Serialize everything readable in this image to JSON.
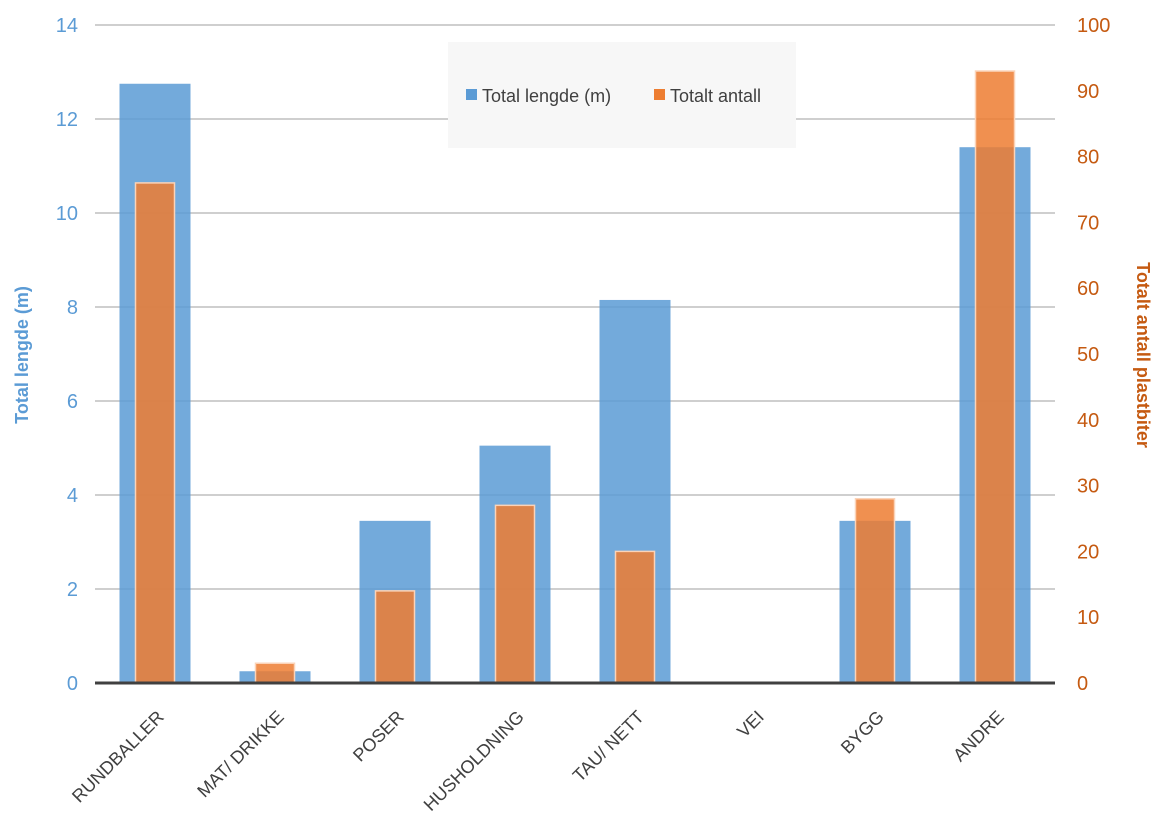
{
  "chart_data": {
    "type": "bar",
    "categories": [
      "RUNDBALLER",
      "MAT/ DRIKKE",
      "POSER",
      "HUSHOLDNING",
      "TAU/ NETT",
      "VEI",
      "BYGG",
      "ANDRE"
    ],
    "series": [
      {
        "name": "Total lengde (m)",
        "axis": "left",
        "color": "#5B9BD5",
        "values": [
          12.75,
          0.25,
          3.45,
          5.05,
          8.15,
          0,
          3.45,
          11.4
        ]
      },
      {
        "name": "Totalt antall",
        "axis": "right",
        "color": "#ED7D31",
        "values": [
          76,
          3,
          14,
          27,
          20,
          0,
          28,
          93
        ]
      }
    ],
    "ylabel": "Total lengde (m)",
    "y2label": "Totalt antall plastbiter",
    "ylim": [
      0,
      14
    ],
    "y2lim": [
      0,
      100
    ],
    "yticks": [
      "0",
      "2",
      "4",
      "6",
      "8",
      "10",
      "12",
      "14"
    ],
    "y2ticks": [
      "0",
      "10",
      "20",
      "30",
      "40",
      "50",
      "60",
      "70",
      "80",
      "90",
      "100"
    ],
    "grid": true,
    "legend_position": "top-center",
    "colors": {
      "left_axis": "#5B9BD5",
      "right_axis": "#C55A11",
      "grid": "#BFBFBF",
      "baseline": "#404040"
    }
  }
}
